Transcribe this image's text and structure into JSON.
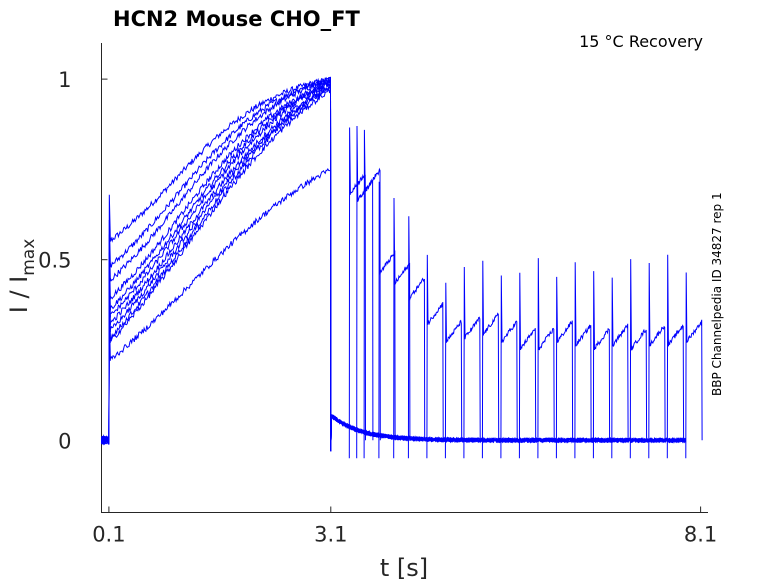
{
  "chart_data": {
    "type": "line",
    "title": "HCN2  Mouse  CHO_FT",
    "annotation": "15 °C  Recovery",
    "side_label": "BBP Channelpedia ID 34827 rep 1",
    "xlabel": "t [s]",
    "ylabel_main": "I / I",
    "ylabel_sub": "max",
    "x_ticks": [
      {
        "value": 0.1,
        "label": "0.1"
      },
      {
        "value": 3.1,
        "label": "3.1"
      },
      {
        "value": 8.1,
        "label": "8.1"
      }
    ],
    "y_ticks": [
      {
        "value": 0,
        "label": "0"
      },
      {
        "value": 0.5,
        "label": "0.5"
      },
      {
        "value": 1,
        "label": "1"
      }
    ],
    "xlim": [
      0.0,
      8.2
    ],
    "ylim": [
      -0.2,
      1.1
    ],
    "series_color": "#0000ff",
    "recovery_protocol": {
      "prepulse_start_s": 0.1,
      "prepulse_end_s": 3.1,
      "test_pulse_times_s": [
        3.35,
        3.45,
        3.55,
        3.75,
        3.95,
        4.15,
        4.4,
        4.65,
        4.9,
        5.15,
        5.4,
        5.65,
        5.9,
        6.15,
        6.4,
        6.65,
        6.9,
        7.15,
        7.4,
        7.65,
        7.9
      ],
      "test_pulse_peak": [
        0.74,
        0.72,
        0.75,
        0.52,
        0.49,
        0.45,
        0.38,
        0.33,
        0.34,
        0.35,
        0.33,
        0.31,
        0.31,
        0.33,
        0.32,
        0.31,
        0.32,
        0.31,
        0.32,
        0.32,
        0.33
      ]
    },
    "traces": [
      {
        "start": 0.55,
        "end": 1.0
      },
      {
        "start": 0.48,
        "end": 1.0
      },
      {
        "start": 0.44,
        "end": 1.0
      },
      {
        "start": 0.39,
        "end": 0.99
      },
      {
        "start": 0.36,
        "end": 0.99
      },
      {
        "start": 0.34,
        "end": 0.99
      },
      {
        "start": 0.32,
        "end": 0.98
      },
      {
        "start": 0.3,
        "end": 0.98
      },
      {
        "start": 0.28,
        "end": 0.98
      },
      {
        "start": 0.27,
        "end": 0.97
      },
      {
        "start": 0.22,
        "end": 0.75
      }
    ]
  }
}
